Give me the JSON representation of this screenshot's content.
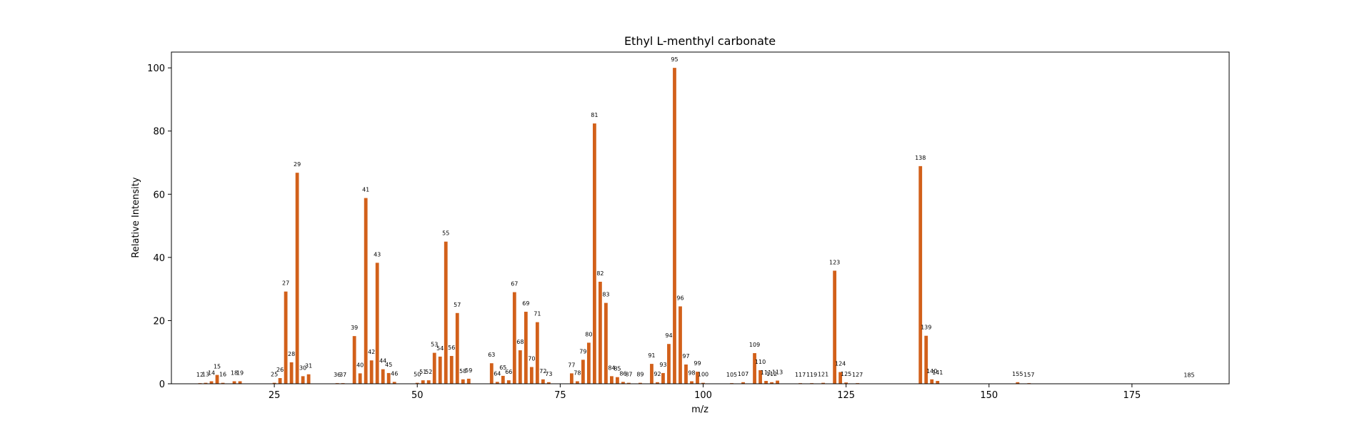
{
  "chart_data": {
    "type": "bar",
    "title": "Ethyl L-menthyl carbonate",
    "xlabel": "m/z",
    "ylabel": "Relative Intensity",
    "xlim": [
      7,
      192
    ],
    "ylim": [
      0,
      105
    ],
    "xticks": [
      25,
      50,
      75,
      100,
      125,
      150,
      175
    ],
    "yticks": [
      0,
      20,
      40,
      60,
      80,
      100
    ],
    "grid": false,
    "bar_color": "#d2601a",
    "points": [
      {
        "x": 12,
        "y": 0.2
      },
      {
        "x": 13,
        "y": 0.3
      },
      {
        "x": 14,
        "y": 0.8
      },
      {
        "x": 15,
        "y": 2.8
      },
      {
        "x": 16,
        "y": 0.3
      },
      {
        "x": 18,
        "y": 0.8
      },
      {
        "x": 19,
        "y": 0.8
      },
      {
        "x": 25,
        "y": 0.3
      },
      {
        "x": 26,
        "y": 1.8
      },
      {
        "x": 27,
        "y": 29.2
      },
      {
        "x": 28,
        "y": 6.8
      },
      {
        "x": 29,
        "y": 66.8
      },
      {
        "x": 30,
        "y": 2.4
      },
      {
        "x": 31,
        "y": 3.0
      },
      {
        "x": 36,
        "y": 0.2
      },
      {
        "x": 37,
        "y": 0.2
      },
      {
        "x": 39,
        "y": 15.1
      },
      {
        "x": 40,
        "y": 3.3
      },
      {
        "x": 41,
        "y": 58.8
      },
      {
        "x": 42,
        "y": 7.4
      },
      {
        "x": 43,
        "y": 38.3
      },
      {
        "x": 44,
        "y": 4.6
      },
      {
        "x": 45,
        "y": 3.4
      },
      {
        "x": 46,
        "y": 0.6
      },
      {
        "x": 50,
        "y": 0.3
      },
      {
        "x": 51,
        "y": 1.1
      },
      {
        "x": 52,
        "y": 1.1
      },
      {
        "x": 53,
        "y": 9.8
      },
      {
        "x": 54,
        "y": 8.6
      },
      {
        "x": 55,
        "y": 45.0
      },
      {
        "x": 56,
        "y": 8.8
      },
      {
        "x": 57,
        "y": 22.4
      },
      {
        "x": 58,
        "y": 1.4
      },
      {
        "x": 59,
        "y": 1.6
      },
      {
        "x": 63,
        "y": 6.5
      },
      {
        "x": 64,
        "y": 0.6
      },
      {
        "x": 65,
        "y": 2.5
      },
      {
        "x": 66,
        "y": 1.1
      },
      {
        "x": 67,
        "y": 29.0
      },
      {
        "x": 68,
        "y": 10.6
      },
      {
        "x": 69,
        "y": 22.8
      },
      {
        "x": 70,
        "y": 5.3
      },
      {
        "x": 71,
        "y": 19.5
      },
      {
        "x": 72,
        "y": 1.4
      },
      {
        "x": 73,
        "y": 0.5
      },
      {
        "x": 77,
        "y": 3.3
      },
      {
        "x": 78,
        "y": 0.8
      },
      {
        "x": 79,
        "y": 7.6
      },
      {
        "x": 80,
        "y": 13.0
      },
      {
        "x": 81,
        "y": 82.4
      },
      {
        "x": 82,
        "y": 32.3
      },
      {
        "x": 83,
        "y": 25.6
      },
      {
        "x": 84,
        "y": 2.4
      },
      {
        "x": 85,
        "y": 2.1
      },
      {
        "x": 86,
        "y": 0.6
      },
      {
        "x": 87,
        "y": 0.3
      },
      {
        "x": 89,
        "y": 0.3
      },
      {
        "x": 91,
        "y": 6.3
      },
      {
        "x": 92,
        "y": 0.5
      },
      {
        "x": 93,
        "y": 3.4
      },
      {
        "x": 94,
        "y": 12.6
      },
      {
        "x": 95,
        "y": 100.0
      },
      {
        "x": 96,
        "y": 24.5
      },
      {
        "x": 97,
        "y": 6.1
      },
      {
        "x": 98,
        "y": 0.8
      },
      {
        "x": 99,
        "y": 3.8
      },
      {
        "x": 100,
        "y": 0.3
      },
      {
        "x": 105,
        "y": 0.2
      },
      {
        "x": 107,
        "y": 0.5
      },
      {
        "x": 109,
        "y": 9.7
      },
      {
        "x": 110,
        "y": 4.3
      },
      {
        "x": 111,
        "y": 0.9
      },
      {
        "x": 112,
        "y": 0.5
      },
      {
        "x": 113,
        "y": 1.0
      },
      {
        "x": 117,
        "y": 0.2
      },
      {
        "x": 119,
        "y": 0.2
      },
      {
        "x": 121,
        "y": 0.3
      },
      {
        "x": 123,
        "y": 35.8
      },
      {
        "x": 124,
        "y": 3.7
      },
      {
        "x": 125,
        "y": 0.4
      },
      {
        "x": 127,
        "y": 0.2
      },
      {
        "x": 138,
        "y": 68.9
      },
      {
        "x": 139,
        "y": 15.2
      },
      {
        "x": 140,
        "y": 1.4
      },
      {
        "x": 141,
        "y": 0.9
      },
      {
        "x": 155,
        "y": 0.5
      },
      {
        "x": 157,
        "y": 0.2
      },
      {
        "x": 185,
        "y": 0.1
      }
    ]
  }
}
